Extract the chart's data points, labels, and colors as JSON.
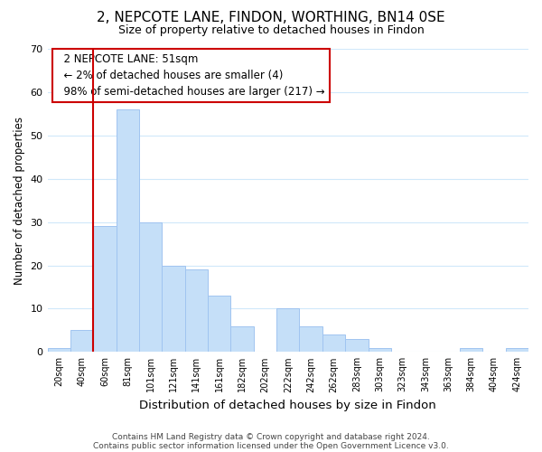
{
  "title": "2, NEPCOTE LANE, FINDON, WORTHING, BN14 0SE",
  "subtitle": "Size of property relative to detached houses in Findon",
  "xlabel": "Distribution of detached houses by size in Findon",
  "ylabel": "Number of detached properties",
  "bar_labels": [
    "20sqm",
    "40sqm",
    "60sqm",
    "81sqm",
    "101sqm",
    "121sqm",
    "141sqm",
    "161sqm",
    "182sqm",
    "202sqm",
    "222sqm",
    "242sqm",
    "262sqm",
    "283sqm",
    "303sqm",
    "323sqm",
    "343sqm",
    "363sqm",
    "384sqm",
    "404sqm",
    "424sqm"
  ],
  "bar_values": [
    1,
    5,
    29,
    56,
    30,
    20,
    19,
    13,
    6,
    0,
    10,
    6,
    4,
    3,
    1,
    0,
    0,
    0,
    1,
    0,
    1
  ],
  "bar_color": "#c5dff8",
  "bar_edge_color": "#a0c4f0",
  "vline_color": "#cc0000",
  "vline_pos": 2,
  "ylim": [
    0,
    70
  ],
  "yticks": [
    0,
    10,
    20,
    30,
    40,
    50,
    60,
    70
  ],
  "annotation_title": "2 NEPCOTE LANE: 51sqm",
  "annotation_line1": "← 2% of detached houses are smaller (4)",
  "annotation_line2": "98% of semi-detached houses are larger (217) →",
  "annotation_box_color": "#ffffff",
  "annotation_box_edge": "#cc0000",
  "footer1": "Contains HM Land Registry data © Crown copyright and database right 2024.",
  "footer2": "Contains public sector information licensed under the Open Government Licence v3.0.",
  "background_color": "#ffffff",
  "grid_color": "#d0e8fa"
}
